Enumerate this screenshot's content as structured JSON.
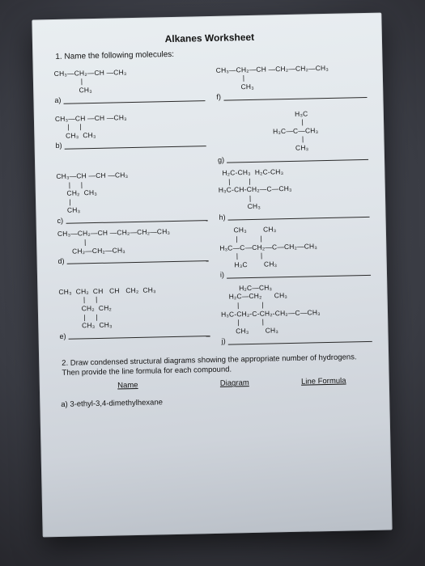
{
  "title": "Alkanes Worksheet",
  "q1": "1. Name the following molecules:",
  "items": [
    {
      "letter": "a)",
      "struct": "CH₃—CH₂—CH —CH₃\n             |\n            CH₃"
    },
    {
      "letter": "f)",
      "struct": "CH₃—CH₂—CH —CH₂—CH₂—CH₃\n             |\n            CH₃"
    },
    {
      "letter": "b)",
      "struct": "CH₃—CH —CH —CH₃\n      |     |\n     CH₃  CH₃"
    },
    {
      "letter": "g)",
      "struct": "         H₃C\n          |\n   H₃C—C—CH₃\n          |\n         CH₃"
    },
    {
      "letter": "c)",
      "struct": "CH₃—CH —CH —CH₃\n      |     |\n     CH₂  CH₃\n      |\n     CH₃"
    },
    {
      "letter": "h)",
      "struct": "  H₂C-CH₃  H₂C-CH₃\n     |         |\nH₃C-CH-CH₂—C—CH₃\n               |\n              CH₃"
    },
    {
      "letter": "d)",
      "struct": "CH₃—CH₂—CH —CH₂—CH₂—CH₃\n             |\n       CH₂—CH₂—CH₃"
    },
    {
      "letter": "i)",
      "struct": "       CH₃        CH₃\n        |           |\nH₃C—C—CH₂—C—CH₂—CH₃\n        |           |\n       H₃C        CH₃"
    },
    {
      "letter": "e)",
      "struct": "CH₃  CH₂  CH   CH   CH₂  CH₃\n            |     |\n           CH₂  CH₂\n            |     |\n           CH₃  CH₃"
    },
    {
      "letter": "j)",
      "struct": "         H₂C—CH₃\n    H₂C—CH₂      CH₃\n        |           |\nH₃C-CH₂-C-CH₂-CH₂—C—CH₃\n        |           |\n       CH₃        CH₃"
    }
  ],
  "q2": "2. Draw condensed structural diagrams showing the appropriate number of hydrogens. Then provide the line formula for each compound.",
  "col1": "Name",
  "col2": "Diagram",
  "col3": "Line Formula",
  "compound_a_label": "a) 3-ethyl-3,4-dimethylhexane"
}
